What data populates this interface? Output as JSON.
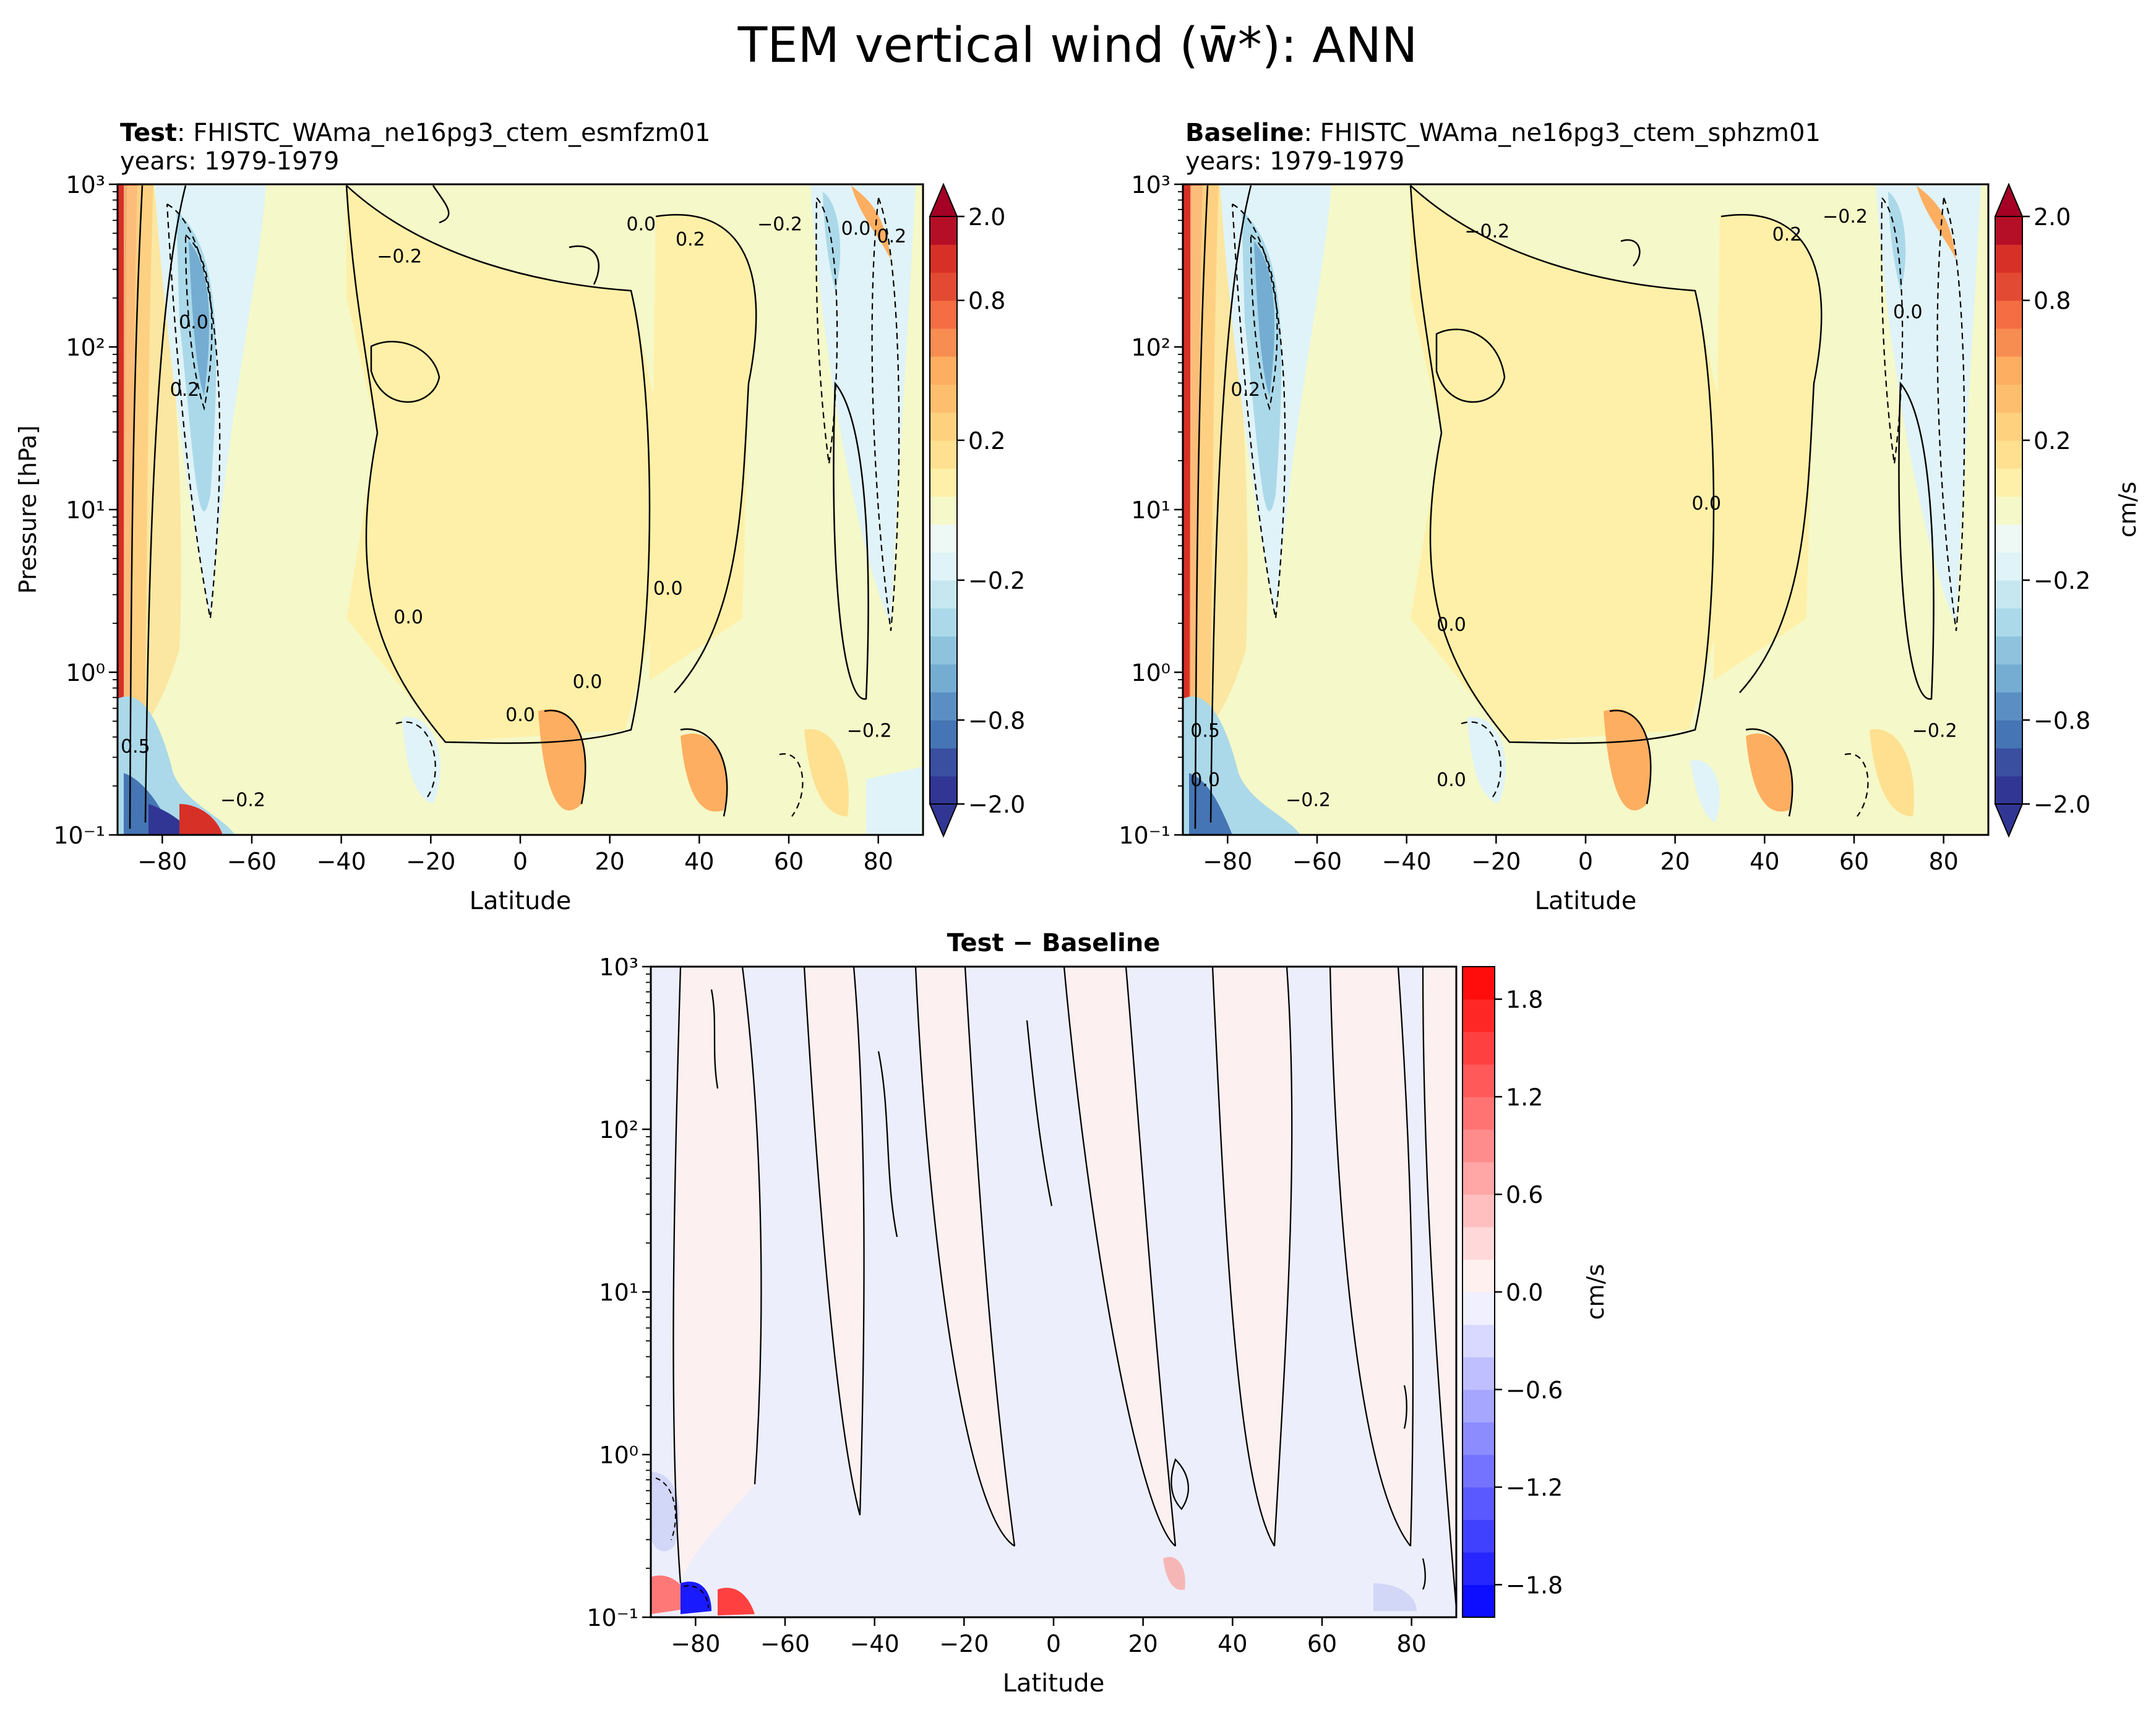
{
  "suptitle": "TEM vertical wind (w̄*): ANN",
  "colors": {
    "cool_extreme": "#313695",
    "cool_mid": "#74add1",
    "cool_light": "#e0f3f8",
    "neutral": "#f5f8c8",
    "warm_light": "#fef0a8",
    "warm_mid": "#fdae61",
    "warm_strong": "#d73027",
    "warm_extreme": "#a50026",
    "diff_neg": "#0000ff",
    "diff_pos": "#ff0000",
    "diff_neg_light": "#eceefb",
    "diff_pos_light": "#fcf0f0"
  },
  "chart_data": [
    {
      "type": "contour",
      "panel": "test",
      "title_bold": "Test",
      "title_rest": ": FHISTC_WAma_ne16pg3_ctem_esmfzm01",
      "subtitle": "years: 1979-1979",
      "xlabel": "Latitude",
      "ylabel": "Pressure [hPa]",
      "xlim": [
        -90,
        90
      ],
      "ylim": [
        1000,
        0.1
      ],
      "yscale": "log",
      "xticks": [
        "−80",
        "−60",
        "−40",
        "−20",
        "0",
        "20",
        "40",
        "60",
        "80"
      ],
      "xtick_values": [
        -80,
        -60,
        -40,
        -20,
        0,
        20,
        40,
        60,
        80
      ],
      "yticks": [
        "10⁻¹",
        "10⁰",
        "10¹",
        "10²",
        "10³"
      ],
      "ytick_values": [
        0.1,
        1,
        10,
        100,
        1000
      ],
      "contour_labels": [
        {
          "text": "−0.2",
          "lat": -62,
          "p": 0.15
        },
        {
          "text": "0.0",
          "lat": 0,
          "p": 0.5
        },
        {
          "text": "0.0",
          "lat": 15,
          "p": 0.8
        },
        {
          "text": "0.0",
          "lat": -25,
          "p": 2.0
        },
        {
          "text": "0.0",
          "lat": 33,
          "p": 3.0
        },
        {
          "text": "−0.2",
          "lat": 78,
          "p": 0.4
        },
        {
          "text": "0.5",
          "lat": -86,
          "p": 0.32
        },
        {
          "text": "0.2",
          "lat": -75,
          "p": 50
        },
        {
          "text": "0.0",
          "lat": -73,
          "p": 130
        },
        {
          "text": "−0.2",
          "lat": -27,
          "p": 330
        },
        {
          "text": "0.0",
          "lat": 27,
          "p": 520
        },
        {
          "text": "0.2",
          "lat": 38,
          "p": 420
        },
        {
          "text": "−0.2",
          "lat": 58,
          "p": 520
        },
        {
          "text": "0.0",
          "lat": 75,
          "p": 490
        },
        {
          "text": "0.2",
          "lat": 83,
          "p": 440
        }
      ]
    },
    {
      "type": "contour",
      "panel": "baseline",
      "title_bold": "Baseline",
      "title_rest": ": FHISTC_WAma_ne16pg3_ctem_sphzm01",
      "subtitle": "years: 1979-1979",
      "xlabel": "Latitude",
      "ylabel": "",
      "xlim": [
        -90,
        90
      ],
      "ylim": [
        1000,
        0.1
      ],
      "yscale": "log",
      "xticks": [
        "−80",
        "−60",
        "−40",
        "−20",
        "0",
        "20",
        "40",
        "60",
        "80"
      ],
      "xtick_values": [
        -80,
        -60,
        -40,
        -20,
        0,
        20,
        40,
        60,
        80
      ],
      "yticks": [
        "10⁻¹",
        "10⁰",
        "10¹",
        "10²",
        "10³"
      ],
      "ytick_values": [
        0.1,
        1,
        10,
        100,
        1000
      ],
      "contour_labels": [
        {
          "text": "0.0",
          "lat": -85,
          "p": 0.2
        },
        {
          "text": "−0.2",
          "lat": -62,
          "p": 0.15
        },
        {
          "text": "0.0",
          "lat": -30,
          "p": 0.2
        },
        {
          "text": "0.0",
          "lat": -30,
          "p": 1.8
        },
        {
          "text": "−0.2",
          "lat": 78,
          "p": 0.4
        },
        {
          "text": "0.5",
          "lat": -85,
          "p": 0.4
        },
        {
          "text": "0.0",
          "lat": 27,
          "p": 10
        },
        {
          "text": "0.2",
          "lat": -76,
          "p": 50
        },
        {
          "text": "0.0",
          "lat": 72,
          "p": 150
        },
        {
          "text": "−0.2",
          "lat": -22,
          "p": 470
        },
        {
          "text": "−0.2",
          "lat": 58,
          "p": 580
        },
        {
          "text": "0.2",
          "lat": 45,
          "p": 450
        }
      ]
    },
    {
      "type": "contour",
      "panel": "difference",
      "title": "Test − Baseline",
      "xlabel": "Latitude",
      "xlim": [
        -90,
        90
      ],
      "ylim": [
        1000,
        0.1
      ],
      "yscale": "log",
      "xticks": [
        "−80",
        "−60",
        "−40",
        "−20",
        "0",
        "20",
        "40",
        "60",
        "80"
      ],
      "xtick_values": [
        -80,
        -60,
        -40,
        -20,
        0,
        20,
        40,
        60,
        80
      ],
      "yticks": [
        "10⁻¹",
        "10⁰",
        "10¹",
        "10²",
        "10³"
      ],
      "ytick_values": [
        0.1,
        1,
        10,
        100,
        1000
      ]
    }
  ],
  "colorbar_main": {
    "label": "cm/s",
    "tick_labels": [
      "2.0",
      "0.8",
      "0.2",
      "−0.2",
      "−0.8",
      "−2.0"
    ],
    "levels": [
      -2.0,
      -1.4,
      -1.0,
      -0.8,
      -0.6,
      -0.5,
      -0.4,
      -0.3,
      -0.2,
      -0.1,
      -0.05,
      0.05,
      0.1,
      0.2,
      0.3,
      0.4,
      0.5,
      0.6,
      0.8,
      1.0,
      1.4,
      2.0
    ],
    "extend": "both"
  },
  "colorbar_diff": {
    "label": "cm/s",
    "tick_labels": [
      "1.8",
      "1.2",
      "0.6",
      "0.0",
      "−0.6",
      "−1.2",
      "−1.8"
    ],
    "tick_values": [
      1.8,
      1.2,
      0.6,
      0.0,
      -0.6,
      -1.2,
      -1.8
    ],
    "range": [
      -2.0,
      2.0
    ],
    "nlevels": 20
  }
}
